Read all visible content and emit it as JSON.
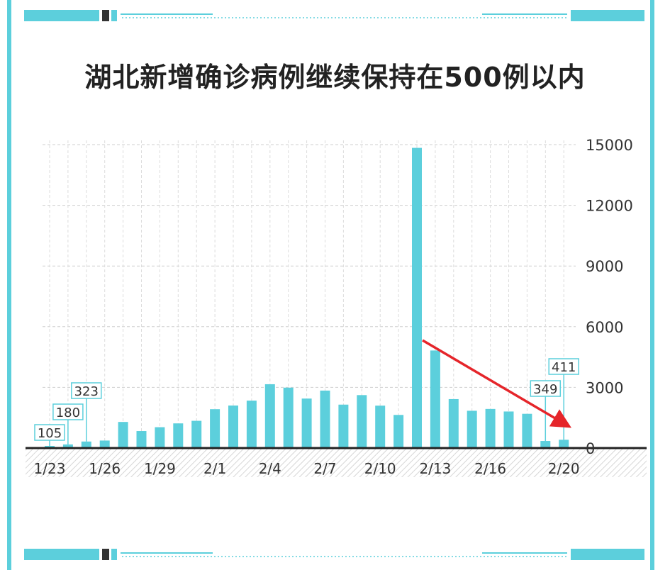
{
  "title": "湖北新增确诊病例继续保持在500例以内",
  "colors": {
    "accent": "#5ccfdc",
    "arrow": "#e5252a",
    "axis": "#222222",
    "label_border": "#5ccfdc"
  },
  "chart_data": {
    "type": "bar",
    "title": "湖北新增确诊病例继续保持在500例以内",
    "categories": [
      "1/23",
      "1/24",
      "1/25",
      "1/26",
      "1/27",
      "1/28",
      "1/29",
      "1/30",
      "1/31",
      "2/1",
      "2/2",
      "2/3",
      "2/4",
      "2/5",
      "2/6",
      "2/7",
      "2/8",
      "2/9",
      "2/10",
      "2/11",
      "2/12",
      "2/13",
      "2/14",
      "2/15",
      "2/16",
      "2/17",
      "2/18",
      "2/19",
      "2/20"
    ],
    "values": [
      105,
      180,
      323,
      371,
      1291,
      840,
      1032,
      1220,
      1347,
      1921,
      2103,
      2345,
      3156,
      2987,
      2447,
      2841,
      2147,
      2618,
      2097,
      1638,
      14840,
      4823,
      2420,
      1843,
      1933,
      1807,
      1693,
      349,
      411
    ],
    "x_tick_labels": [
      "1/23",
      "1/26",
      "1/29",
      "2/1",
      "2/4",
      "2/7",
      "2/10",
      "2/13",
      "2/16",
      "2/20"
    ],
    "y_tick_labels": [
      "0",
      "3000",
      "6000",
      "9000",
      "12000",
      "15000"
    ],
    "ylim": [
      0,
      15000
    ],
    "data_labels": [
      {
        "category": "1/23",
        "text": "105"
      },
      {
        "category": "1/24",
        "text": "180"
      },
      {
        "category": "1/25",
        "text": "323"
      },
      {
        "category": "2/19",
        "text": "349"
      },
      {
        "category": "2/20",
        "text": "411"
      }
    ],
    "annotation": "red arrow pointing down toward 2/20",
    "grid": true,
    "yaxis_side": "right"
  }
}
